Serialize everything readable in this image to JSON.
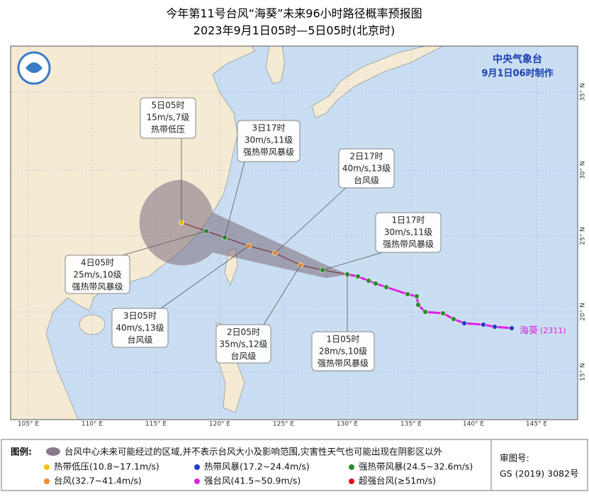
{
  "header": {
    "title": "今年第11号台风“海葵”未来96小时路径概率预报图",
    "subtitle": "2023年9月1日05时—5日05时(北京时)"
  },
  "agency": {
    "name": "中央气象台",
    "issued": "9月1日06时制作"
  },
  "storm_label": {
    "name": "海葵",
    "code": "(2311)"
  },
  "callouts": [
    {
      "time": "5日05时",
      "wind": "15m/s,7级",
      "level": "热带低压"
    },
    {
      "time": "3日17时",
      "wind": "30m/s,11级",
      "level": "强热带风暴级"
    },
    {
      "time": "2日17时",
      "wind": "40m/s,13级",
      "level": "台风级"
    },
    {
      "time": "1日17时",
      "wind": "30m/s,11级",
      "level": "强热带风暴级"
    },
    {
      "time": "4日05时",
      "wind": "25m/s,10级",
      "level": "强热带风暴级"
    },
    {
      "time": "3日05时",
      "wind": "40m/s,13级",
      "level": "台风级"
    },
    {
      "time": "2日05时",
      "wind": "35m/s,12级",
      "level": "台风级"
    },
    {
      "time": "1日05时",
      "wind": "28m/s,10级",
      "level": "强热带风暴级"
    }
  ],
  "lon_labels": [
    "105° E",
    "110° E",
    "115° E",
    "120° E",
    "125° E",
    "130° E",
    "135° E",
    "140° E",
    "145° E"
  ],
  "lat_labels": [
    "35° N",
    "30° N",
    "25° N",
    "20° N",
    "15° N"
  ],
  "legend": {
    "title": "图例:",
    "cone": "台风中心未来可能经过的区域,并不表示台风大小及影响范围,灾害性天气也可能出现在阴影区以外",
    "items": [
      {
        "label": "热带低压(10.8~17.1m/s)",
        "color": "#f5c400"
      },
      {
        "label": "热带风暴(17.2~24.4m/s)",
        "color": "#1f3fd0"
      },
      {
        "label": "强热带风暴(24.5~32.6m/s)",
        "color": "#2e8b2e"
      },
      {
        "label": "台风(32.7~41.4m/s)",
        "color": "#f08c2a"
      },
      {
        "label": "强台风(41.5~50.9m/s)",
        "color": "#e020e0"
      },
      {
        "label": "超强台风(≥51m/s)",
        "color": "#e01010"
      }
    ]
  },
  "review": {
    "label": "审图号:",
    "number": "GS (2019) 3082号"
  }
}
